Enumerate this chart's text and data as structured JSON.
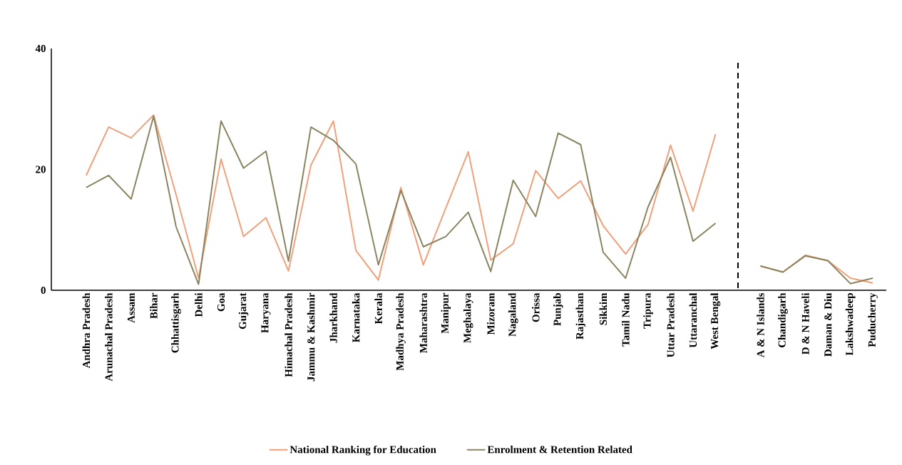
{
  "chart_data": {
    "type": "line",
    "categories": [
      "Andhra Pradesh",
      "Arunachal Pradesh",
      "Assam",
      "Bihar",
      "Chhattisgarh",
      "Delhi",
      "Goa",
      "Gujarat",
      "Haryana",
      "Himachal Pradesh",
      "Jammu & Kashmir",
      "Jharkhand",
      "Karnataka",
      "Kerala",
      "Madhya Pradesh",
      "Maharashtra",
      "Manipur",
      "Meghalaya",
      "Mizoram",
      "Nagaland",
      "Orissa",
      "Punjab",
      "Rajasthan",
      "Sikkim",
      "Tamil Nadu",
      "Tripura",
      "Uttar Pradesh",
      "Uttaranchal",
      "West Bengal",
      null,
      "A & N Islands",
      "Chandigarh",
      "D & N Haveli",
      "Daman & Diu",
      "Lakshwadeep",
      "Puducherry"
    ],
    "series": [
      {
        "name": "National Ranking for Education",
        "color": "#f0a07a",
        "values": [
          19,
          27,
          25.2,
          29,
          15.8,
          2,
          21.7,
          8.9,
          12,
          3.2,
          20.7,
          28,
          6.6,
          1.7,
          17,
          4.2,
          13.6,
          22.9,
          5,
          7.7,
          19.8,
          15.2,
          18.1,
          10.7,
          6,
          10.9,
          24,
          13.1,
          25.8,
          null,
          4,
          3,
          5.8,
          4.9,
          2,
          1.2
        ]
      },
      {
        "name": "Enrolment & Retention Related",
        "color": "#8b8460",
        "values": [
          17,
          19,
          15.1,
          28.8,
          10.5,
          1,
          28,
          20.2,
          23,
          4.8,
          27,
          24.8,
          20.9,
          4.2,
          16.5,
          7.2,
          8.9,
          12.9,
          3.1,
          18.2,
          12.2,
          26,
          24.1,
          6.3,
          2,
          13.8,
          22,
          8.1,
          11.1,
          null,
          4,
          3,
          5.7,
          4.9,
          1.1,
          2
        ]
      }
    ],
    "ylim": [
      0,
      40
    ],
    "yticks": [
      0,
      20,
      40
    ],
    "legend": "bottom",
    "marker": "none",
    "line_style": "solid"
  }
}
